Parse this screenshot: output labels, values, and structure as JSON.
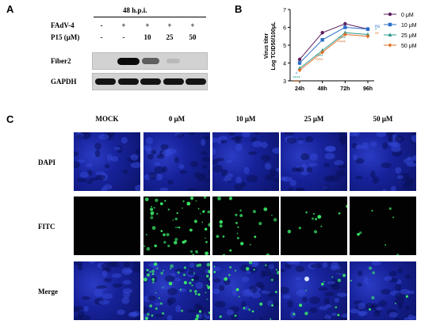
{
  "panel_a": {
    "letter": "A",
    "timepoint": "48 h.p.i.",
    "row_labels": {
      "virus": "FAdV-4",
      "drug": "P15 (μM)"
    },
    "virus_marks": [
      "-",
      "+",
      "+",
      "+",
      "+"
    ],
    "drug_marks": [
      "-",
      "-",
      "10",
      "25",
      "50"
    ],
    "bands": [
      {
        "label": "Fiber2",
        "intensity": [
          0.0,
          1.0,
          0.55,
          0.08,
          0.0
        ]
      },
      {
        "label": "GAPDH",
        "intensity": [
          0.95,
          0.95,
          0.95,
          0.95,
          0.95
        ]
      }
    ]
  },
  "panel_b": {
    "letter": "B",
    "chart_data": {
      "type": "line",
      "categories": [
        "24h",
        "48h",
        "72h",
        "96h"
      ],
      "ylabel": "Virus titer Log TCID50/100μL",
      "ylim": [
        3,
        7
      ],
      "yticks": [
        3,
        4,
        5,
        6,
        7
      ],
      "series": [
        {
          "name": "0 μM",
          "color": "#5b1f5e",
          "marker": "circle",
          "values": [
            4.2,
            5.7,
            6.2,
            5.9
          ]
        },
        {
          "name": "10 μM",
          "color": "#2a6fc9",
          "marker": "square",
          "values": [
            4.0,
            5.3,
            6.0,
            5.9
          ]
        },
        {
          "name": "25 μM",
          "color": "#2a9a8c",
          "marker": "triangle",
          "values": [
            3.7,
            4.7,
            5.7,
            5.6
          ]
        },
        {
          "name": "50 μM",
          "color": "#e0712b",
          "marker": "diamond",
          "values": [
            3.6,
            4.6,
            5.6,
            5.5
          ]
        }
      ],
      "annotations": [
        {
          "x": "24h",
          "lines": [
            {
              "text": "*",
              "color": "#2a6fc9"
            },
            {
              "text": "****",
              "color": "#2a9a8c"
            },
            {
              "text": "****",
              "color": "#e0712b"
            }
          ]
        },
        {
          "x": "48h",
          "lines": [
            {
              "text": "****",
              "color": "#2a9a8c"
            },
            {
              "text": "****",
              "color": "#e0712b"
            }
          ]
        },
        {
          "x": "72h",
          "lines": [
            {
              "text": "****",
              "color": "#2a9a8c"
            },
            {
              "text": "****",
              "color": "#e0712b"
            }
          ]
        },
        {
          "x": "96h",
          "lines": [
            {
              "text": "ns",
              "color": "#2a6fc9"
            },
            {
              "text": "*",
              "color": "#2a9a8c"
            },
            {
              "text": "**",
              "color": "#e0712b"
            }
          ]
        }
      ],
      "legend_position": "right"
    }
  },
  "panel_c": {
    "letter": "C",
    "columns": [
      "MOCK",
      "0 μM",
      "10 μM",
      "25 μM",
      "50 μM"
    ],
    "rows": [
      "DAPI",
      "FITC",
      "Merge"
    ],
    "fitc_density": [
      0.0,
      1.0,
      0.45,
      0.2,
      0.12
    ],
    "colors": {
      "dapi": "#1a2aa8",
      "fitc": "#3cf06a",
      "background": "#000000"
    }
  }
}
